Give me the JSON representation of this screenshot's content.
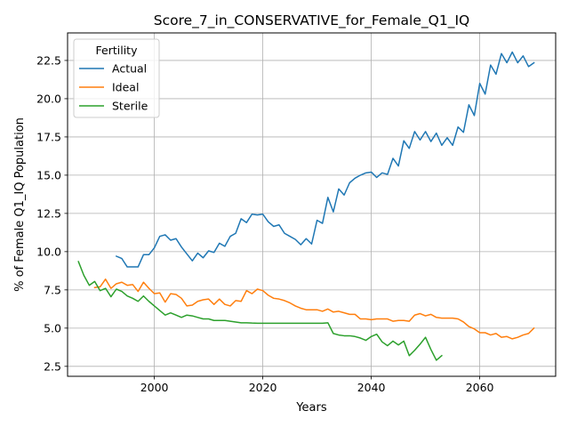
{
  "chart_data": {
    "type": "line",
    "title": "Score_7_in_CONSERVATIVE_for_Female_Q1_IQ",
    "xlabel": "Years",
    "ylabel": "% of Female Q1_IQ Population",
    "xlim": [
      1984,
      2074
    ],
    "ylim": [
      1.85,
      24.3
    ],
    "xticks": [
      2000,
      2020,
      2040,
      2060
    ],
    "yticks": [
      2.5,
      5.0,
      7.5,
      10.0,
      12.5,
      15.0,
      17.5,
      20.0,
      22.5
    ],
    "grid": true,
    "legend": {
      "title": "Fertility",
      "position": "top-left"
    },
    "series": [
      {
        "name": "Actual",
        "color": "#1f77b4",
        "x": [
          1993,
          1994,
          1995,
          1996,
          1997,
          1998,
          1999,
          2000,
          2001,
          2002,
          2003,
          2004,
          2005,
          2006,
          2007,
          2008,
          2009,
          2010,
          2011,
          2012,
          2013,
          2014,
          2015,
          2016,
          2017,
          2018,
          2019,
          2020,
          2021,
          2022,
          2023,
          2024,
          2025,
          2026,
          2027,
          2028,
          2029,
          2030,
          2031,
          2032,
          2033,
          2034,
          2035,
          2036,
          2037,
          2038,
          2039,
          2040,
          2041,
          2042,
          2043,
          2044,
          2045,
          2046,
          2047,
          2048,
          2049,
          2050,
          2051,
          2052,
          2053,
          2054,
          2055,
          2056,
          2057,
          2058,
          2059,
          2060,
          2061,
          2062,
          2063,
          2064,
          2065,
          2066,
          2067,
          2068,
          2069,
          2070
        ],
        "values": [
          9.7,
          9.55,
          9.0,
          9.0,
          9.0,
          9.8,
          9.8,
          10.25,
          11.0,
          11.1,
          10.75,
          10.85,
          10.3,
          9.85,
          9.4,
          9.9,
          9.6,
          10.05,
          9.95,
          10.55,
          10.35,
          11.0,
          11.2,
          12.15,
          11.9,
          12.45,
          12.4,
          12.45,
          11.95,
          11.65,
          11.75,
          11.2,
          11.0,
          10.8,
          10.45,
          10.85,
          10.5,
          12.05,
          11.85,
          13.55,
          12.6,
          14.1,
          13.7,
          14.5,
          14.8,
          15.0,
          15.15,
          15.2,
          14.85,
          15.15,
          15.05,
          16.1,
          15.6,
          17.25,
          16.75,
          17.85,
          17.3,
          17.85,
          17.2,
          17.75,
          16.95,
          17.45,
          16.95,
          18.15,
          17.8,
          19.6,
          18.9,
          21.0,
          20.3,
          22.2,
          21.6,
          22.95,
          22.35,
          23.05,
          22.35,
          22.8,
          22.1,
          22.35
        ]
      },
      {
        "name": "Ideal",
        "color": "#ff7f0e",
        "x": [
          1989,
          1990,
          1991,
          1992,
          1993,
          1994,
          1995,
          1996,
          1997,
          1998,
          1999,
          2000,
          2001,
          2002,
          2003,
          2004,
          2005,
          2006,
          2007,
          2008,
          2009,
          2010,
          2011,
          2012,
          2013,
          2014,
          2015,
          2016,
          2017,
          2018,
          2019,
          2020,
          2021,
          2022,
          2023,
          2024,
          2025,
          2026,
          2027,
          2028,
          2029,
          2030,
          2031,
          2032,
          2033,
          2034,
          2035,
          2036,
          2037,
          2038,
          2039,
          2040,
          2041,
          2042,
          2043,
          2044,
          2045,
          2046,
          2047,
          2048,
          2049,
          2050,
          2051,
          2052,
          2053,
          2054,
          2055,
          2056,
          2057,
          2058,
          2059,
          2060,
          2061,
          2062,
          2063,
          2064,
          2065,
          2066,
          2067,
          2068,
          2069,
          2070
        ],
        "values": [
          7.65,
          7.7,
          8.2,
          7.6,
          7.9,
          8.0,
          7.8,
          7.85,
          7.4,
          8.0,
          7.6,
          7.25,
          7.3,
          6.7,
          7.25,
          7.2,
          6.95,
          6.45,
          6.5,
          6.75,
          6.85,
          6.9,
          6.55,
          6.9,
          6.55,
          6.45,
          6.8,
          6.75,
          7.45,
          7.25,
          7.55,
          7.45,
          7.15,
          6.95,
          6.9,
          6.8,
          6.65,
          6.45,
          6.3,
          6.2,
          6.2,
          6.2,
          6.1,
          6.25,
          6.05,
          6.1,
          6.0,
          5.9,
          5.9,
          5.6,
          5.6,
          5.55,
          5.6,
          5.6,
          5.6,
          5.45,
          5.5,
          5.5,
          5.45,
          5.85,
          5.95,
          5.8,
          5.9,
          5.7,
          5.65,
          5.65,
          5.65,
          5.6,
          5.4,
          5.1,
          4.95,
          4.7,
          4.7,
          4.55,
          4.65,
          4.4,
          4.45,
          4.3,
          4.4,
          4.55,
          4.65,
          5.0
        ]
      },
      {
        "name": "Sterile",
        "color": "#2ca02c",
        "x": [
          1986,
          1987,
          1988,
          1989,
          1990,
          1991,
          1992,
          1993,
          1994,
          1995,
          1996,
          1997,
          1998,
          1999,
          2000,
          2001,
          2002,
          2003,
          2004,
          2005,
          2006,
          2007,
          2008,
          2009,
          2010,
          2011,
          2012,
          2013,
          2014,
          2015,
          2016,
          2017,
          2018,
          2019,
          2020,
          2021,
          2022,
          2023,
          2024,
          2025,
          2026,
          2027,
          2028,
          2029,
          2030,
          2031,
          2032,
          2033,
          2034,
          2035,
          2036,
          2037,
          2038,
          2039,
          2040,
          2041,
          2042,
          2043,
          2044,
          2045,
          2046,
          2047,
          2048,
          2049,
          2050,
          2051,
          2052,
          2053
        ],
        "values": [
          9.35,
          8.45,
          7.8,
          8.05,
          7.45,
          7.6,
          7.05,
          7.55,
          7.4,
          7.1,
          6.95,
          6.75,
          7.1,
          6.75,
          6.45,
          6.15,
          5.85,
          6.0,
          5.85,
          5.7,
          5.85,
          5.8,
          5.7,
          5.6,
          5.6,
          5.5,
          5.5,
          5.5,
          5.45,
          5.4,
          5.35,
          5.35,
          5.33,
          5.32,
          5.32,
          5.32,
          5.32,
          5.32,
          5.32,
          5.32,
          5.32,
          5.32,
          5.32,
          5.32,
          5.32,
          5.32,
          5.35,
          4.65,
          4.55,
          4.5,
          4.5,
          4.45,
          4.35,
          4.2,
          4.45,
          4.6,
          4.1,
          3.85,
          4.15,
          3.9,
          4.15,
          3.2,
          3.55,
          3.95,
          4.4,
          3.6,
          2.9,
          3.2
        ]
      }
    ]
  }
}
